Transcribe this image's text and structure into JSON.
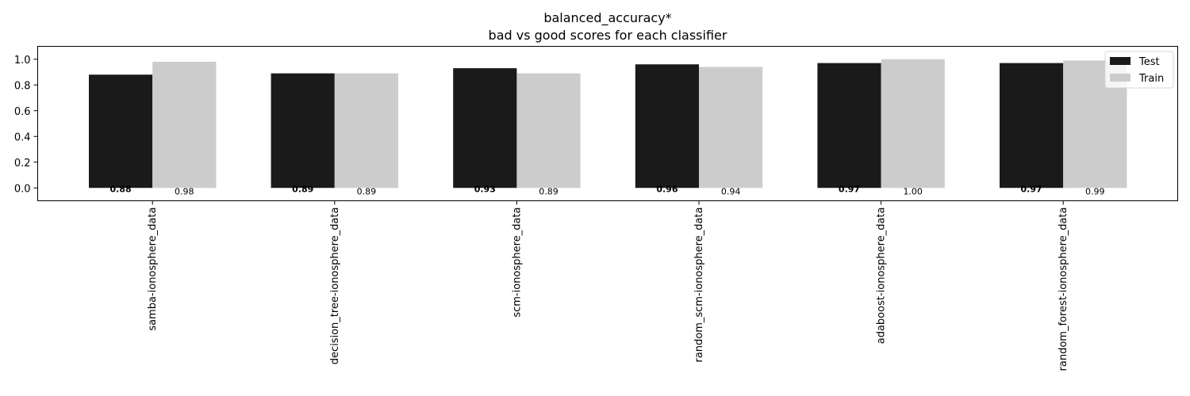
{
  "chart_data": {
    "type": "bar",
    "title": "balanced_accuracy*",
    "subtitle": "bad vs good scores for each classifier",
    "categories": [
      "samba-ionosphere_data",
      "decision_tree-ionosphere_data",
      "scm-ionosphere_data",
      "random_scm-ionosphere_data",
      "adaboost-ionosphere_data",
      "random_forest-ionosphere_data"
    ],
    "series": [
      {
        "name": "Test",
        "values": [
          0.88,
          0.89,
          0.93,
          0.96,
          0.97,
          0.97
        ],
        "value_labels": [
          "0.88",
          "0.89",
          "0.93",
          "0.96",
          "0.97",
          "0.97"
        ],
        "color": "#1a1a1a"
      },
      {
        "name": "Train",
        "values": [
          0.98,
          0.89,
          0.89,
          0.94,
          1.0,
          0.99
        ],
        "value_labels": [
          "0.98",
          "0.89",
          "0.89",
          "0.94",
          "1.00",
          "0.99"
        ],
        "color": "#cccccc"
      }
    ],
    "ylim": [
      -0.1,
      1.1
    ],
    "yticks": [
      0.0,
      0.2,
      0.4,
      0.6,
      0.8,
      1.0
    ],
    "ytick_labels": [
      "0.0",
      "0.2",
      "0.4",
      "0.6",
      "0.8",
      "1.0"
    ],
    "xlabel": "",
    "ylabel": "",
    "grid": false,
    "legend_position": "top-right"
  }
}
